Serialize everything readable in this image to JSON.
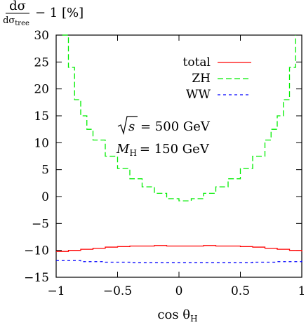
{
  "chart_data": {
    "type": "line",
    "ylabel": "dσ/dσ_tree − 1 [%]",
    "ylabel_parts": {
      "num": "dσ",
      "den": "dσ",
      "den_sub": "tree",
      "rest": "− 1 [%]"
    },
    "xlabel": "cos θ_H",
    "xlabel_parts": {
      "main": "cos θ",
      "sub": "H"
    },
    "xlim": [
      -1,
      1
    ],
    "ylim": [
      -15,
      30
    ],
    "x_ticks": [
      -1,
      -0.5,
      0,
      0.5,
      1
    ],
    "x_tick_labels": [
      "−1",
      "−0.5",
      "0",
      "0.5",
      "1"
    ],
    "y_ticks": [
      -15,
      -10,
      -5,
      0,
      5,
      10,
      15,
      20,
      25,
      30
    ],
    "y_tick_labels": [
      "−15",
      "−10",
      "−5",
      "0",
      "5",
      "10",
      "15",
      "20",
      "25",
      "30"
    ],
    "grid": false,
    "legend_position": "top-right",
    "annotations": {
      "sqrt_s": {
        "lhs": "s",
        "rhs": "= 500 GeV"
      },
      "mass": {
        "lhs": "M",
        "sub": "H",
        "rhs": "= 150 GeV"
      }
    },
    "series": [
      {
        "name": "total",
        "color": "#ff0000",
        "dash": "solid",
        "x": [
          -1.0,
          -0.9,
          -0.8,
          -0.7,
          -0.6,
          -0.5,
          -0.4,
          -0.3,
          -0.2,
          -0.1,
          0.0,
          0.1,
          0.2,
          0.3,
          0.4,
          0.5,
          0.6,
          0.7,
          0.8,
          0.9,
          1.0
        ],
        "values": [
          -10.2,
          -10.0,
          -9.8,
          -9.6,
          -9.4,
          -9.3,
          -9.2,
          -9.2,
          -9.1,
          -9.2,
          -9.2,
          -9.2,
          -9.1,
          -9.2,
          -9.2,
          -9.3,
          -9.4,
          -9.6,
          -9.8,
          -10.0,
          -10.2
        ]
      },
      {
        "name": "ZH",
        "color": "#00ee00",
        "dash": "long",
        "x": [
          -0.95,
          -0.9,
          -0.85,
          -0.8,
          -0.75,
          -0.7,
          -0.6,
          -0.5,
          -0.4,
          -0.3,
          -0.2,
          -0.1,
          0.0,
          0.1,
          0.2,
          0.3,
          0.4,
          0.5,
          0.6,
          0.7,
          0.75,
          0.8,
          0.85,
          0.9,
          0.95
        ],
        "values": [
          30,
          24,
          18,
          15,
          12.5,
          10.5,
          7.5,
          5.2,
          3.3,
          1.8,
          0.6,
          -0.4,
          -0.8,
          -0.4,
          0.6,
          1.8,
          3.3,
          5.2,
          7.5,
          10.5,
          12.5,
          15,
          18,
          24,
          30
        ]
      },
      {
        "name": "WW",
        "color": "#0000ff",
        "dash": "short",
        "x": [
          -1.0,
          -0.8,
          -0.6,
          -0.4,
          -0.2,
          0.0,
          0.2,
          0.4,
          0.6,
          0.8,
          1.0
        ],
        "values": [
          -11.9,
          -12.1,
          -12.2,
          -12.3,
          -12.3,
          -12.3,
          -12.3,
          -12.3,
          -12.2,
          -12.1,
          -11.9
        ]
      }
    ]
  }
}
